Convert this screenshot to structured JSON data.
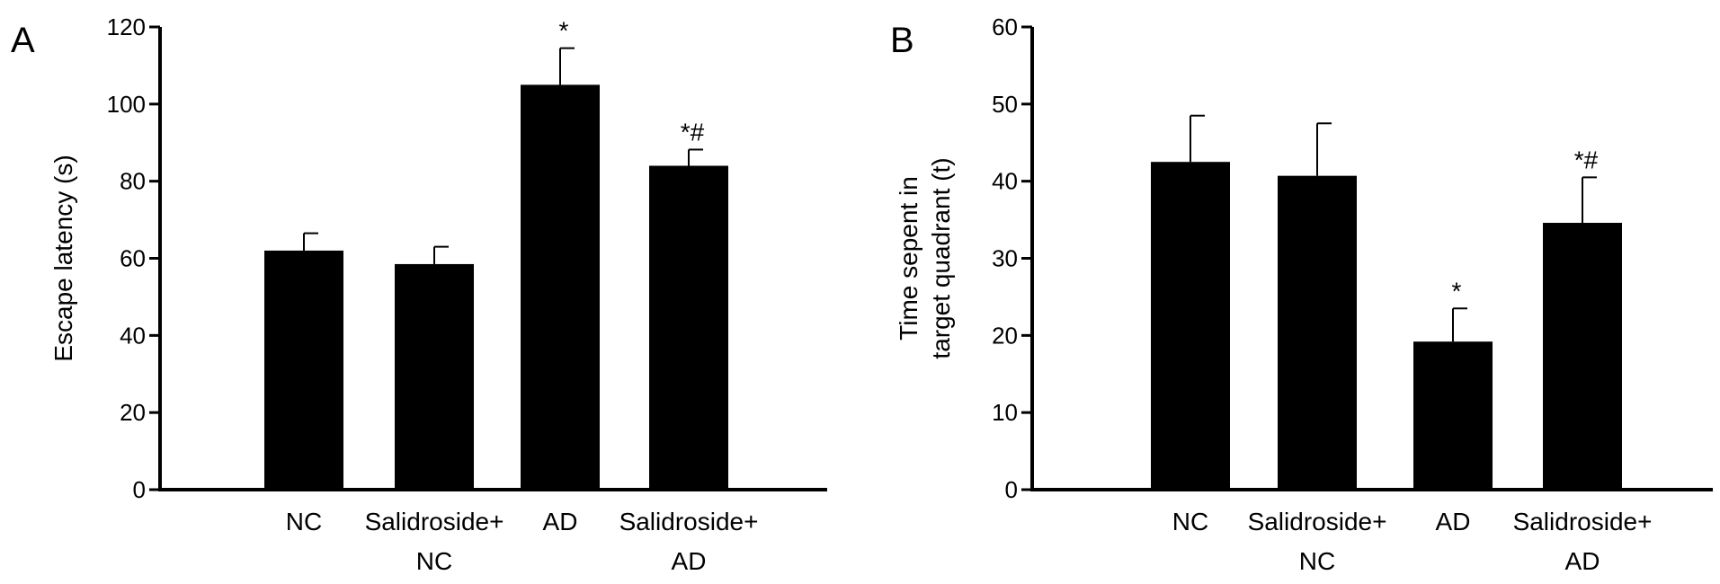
{
  "chart_data": [
    {
      "type": "bar",
      "panel": "A",
      "ylabel": [
        "Escape latency (s)"
      ],
      "categories": [
        [
          "NC"
        ],
        [
          "Salidroside+",
          "NC"
        ],
        [
          "AD"
        ],
        [
          "Salidroside+",
          "AD"
        ]
      ],
      "values": [
        62,
        58.5,
        105,
        84
      ],
      "errors": [
        4.5,
        4.5,
        9.5,
        4.2
      ],
      "annotations": [
        "",
        "",
        "*",
        "*#"
      ],
      "ylim": [
        0,
        120
      ],
      "yticks": [
        0,
        20,
        40,
        60,
        80,
        100,
        120
      ],
      "bar_color": "#000000",
      "grid": false,
      "legend": false
    },
    {
      "type": "bar",
      "panel": "B",
      "ylabel": [
        "Time sepent in",
        "target quadrant (t)"
      ],
      "categories": [
        [
          "NC"
        ],
        [
          "Salidroside+",
          "NC"
        ],
        [
          "AD"
        ],
        [
          "Salidroside+",
          "AD"
        ]
      ],
      "values": [
        42.5,
        40.7,
        19.2,
        34.6
      ],
      "errors": [
        6,
        6.8,
        4.3,
        5.9
      ],
      "annotations": [
        "",
        "",
        "*",
        "*#"
      ],
      "ylim": [
        0,
        60
      ],
      "yticks": [
        0,
        10,
        20,
        30,
        40,
        50,
        60
      ],
      "bar_color": "#000000",
      "grid": false,
      "legend": false
    }
  ]
}
